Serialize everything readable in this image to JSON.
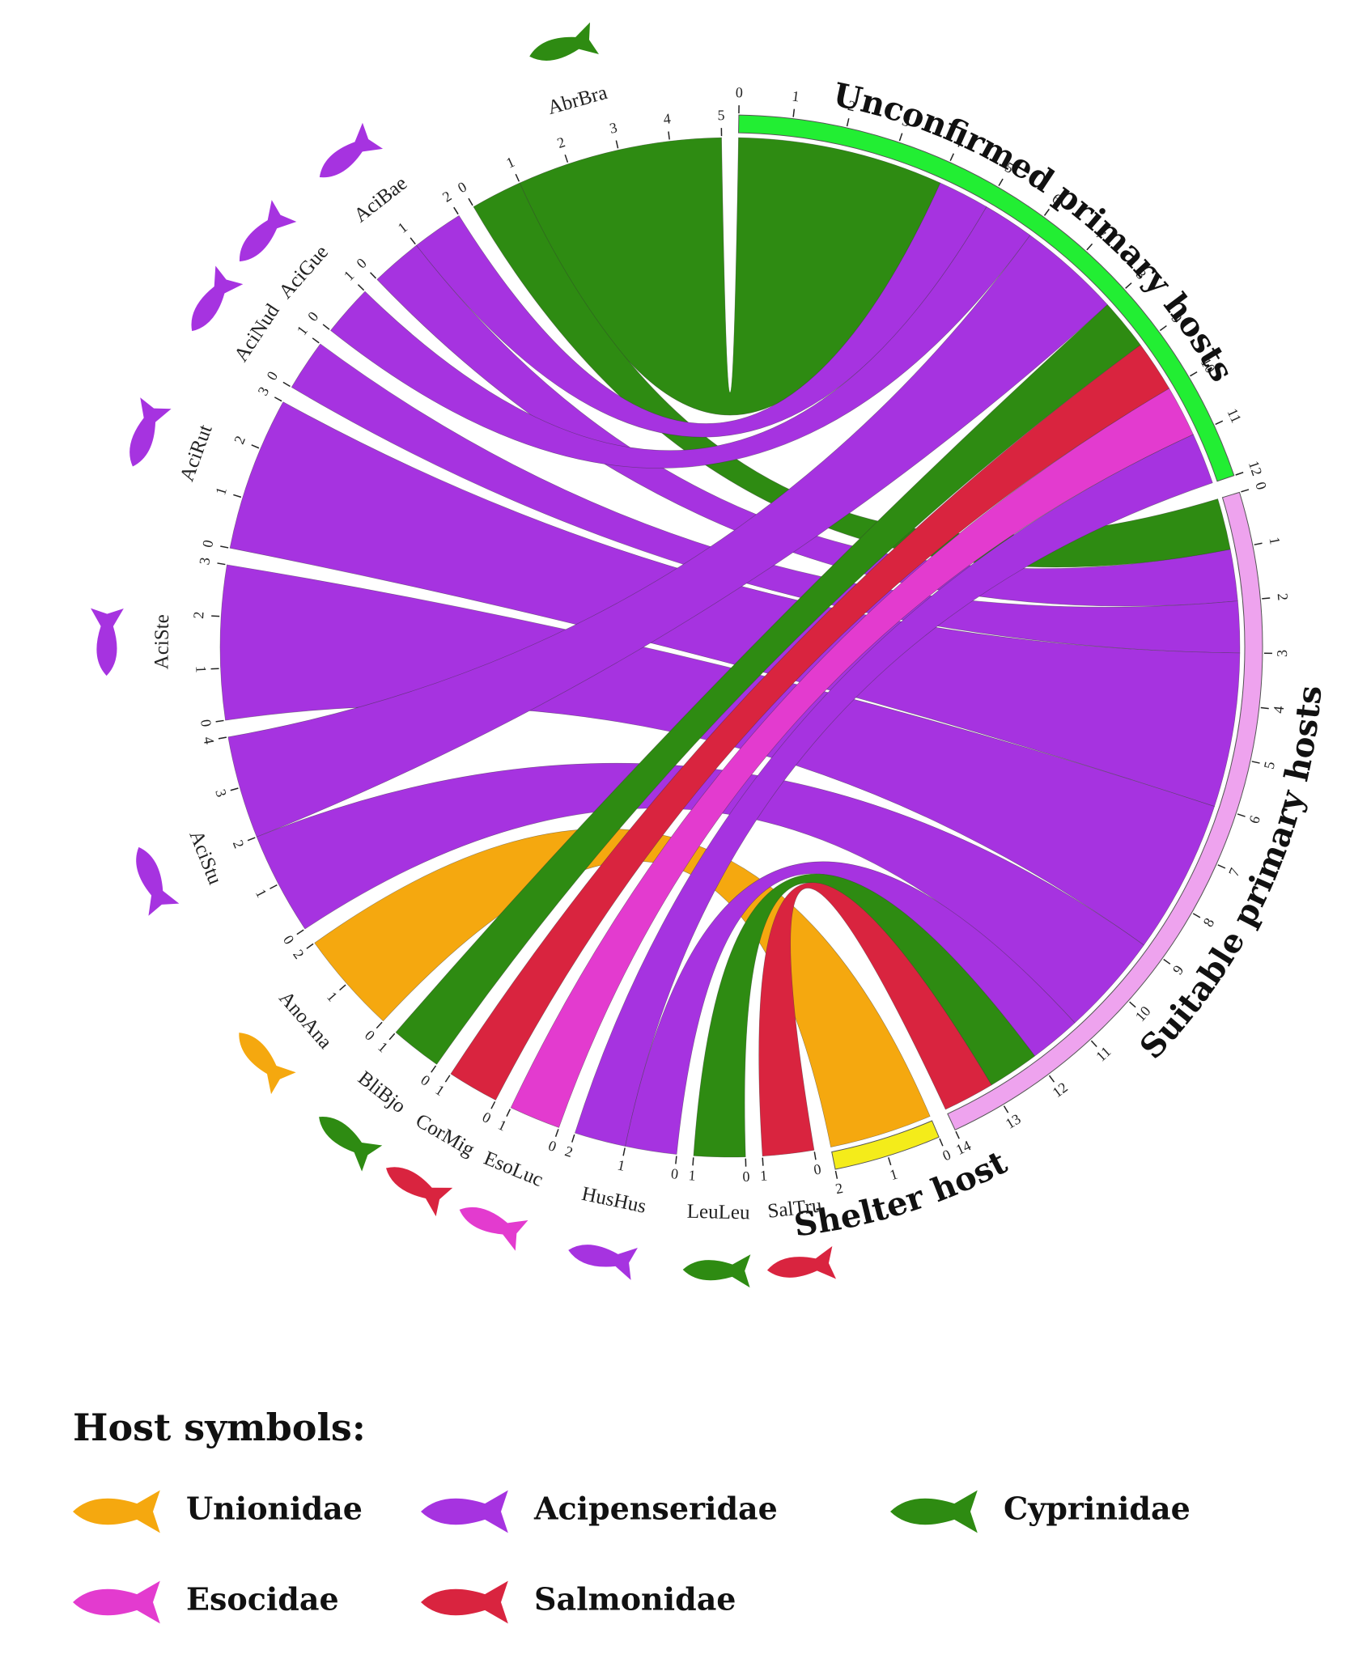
{
  "chart_data": {
    "type": "chord",
    "sectors": [
      {
        "name": "Unconfirmed primary hosts",
        "color": "#22ee33",
        "ticks": [
          0,
          1,
          2,
          3,
          4,
          5,
          6,
          7,
          8,
          9,
          10,
          11,
          12
        ]
      },
      {
        "name": "Suitable primary hosts",
        "color": "#eea3ee",
        "ticks": [
          0,
          1,
          2,
          3,
          4,
          5,
          6,
          7,
          8,
          9,
          10,
          11,
          12,
          13,
          14
        ]
      },
      {
        "name": "Shelter host",
        "color": "#f4ec1a",
        "ticks": [
          0,
          1,
          2
        ]
      },
      {
        "name": "SalTru",
        "color": "#d9243f",
        "ticks": [
          0,
          1
        ]
      },
      {
        "name": "LeuLeu",
        "color": "#2e8b12",
        "ticks": [
          0,
          1
        ]
      },
      {
        "name": "HusHus",
        "color": "#a633e0",
        "ticks": [
          0,
          1,
          2
        ]
      },
      {
        "name": "EsoLuc",
        "color": "#e33bcf",
        "ticks": [
          0,
          1
        ]
      },
      {
        "name": "CorMig",
        "color": "#d9243f",
        "ticks": [
          0,
          1
        ]
      },
      {
        "name": "BliBjo",
        "color": "#2e8b12",
        "ticks": [
          0,
          1
        ]
      },
      {
        "name": "AnoAna",
        "color": "#f5a80f",
        "ticks": [
          0,
          1,
          2
        ]
      },
      {
        "name": "AciStu",
        "color": "#a633e0",
        "ticks": [
          0,
          1,
          2,
          3,
          4
        ]
      },
      {
        "name": "AciSte",
        "color": "#a633e0",
        "ticks": [
          0,
          1,
          2,
          3
        ]
      },
      {
        "name": "AciRut",
        "color": "#a633e0",
        "ticks": [
          0,
          1,
          2,
          3
        ]
      },
      {
        "name": "AciNud",
        "color": "#a633e0",
        "ticks": [
          0,
          1
        ]
      },
      {
        "name": "AciGue",
        "color": "#a633e0",
        "ticks": [
          0,
          1
        ]
      },
      {
        "name": "AciBae",
        "color": "#a633e0",
        "ticks": [
          0,
          1,
          2
        ]
      },
      {
        "name": "AbrBra",
        "color": "#2e8b12",
        "ticks": [
          0,
          1,
          2,
          3,
          4,
          5
        ]
      }
    ],
    "links": [
      {
        "source": "AbrBra",
        "target": "Unconfirmed primary hosts",
        "value": 4
      },
      {
        "source": "AbrBra",
        "target": "Suitable primary hosts",
        "value": 1
      },
      {
        "source": "AciBae",
        "target": "Unconfirmed primary hosts",
        "value": 1
      },
      {
        "source": "AciBae",
        "target": "Suitable primary hosts",
        "value": 1
      },
      {
        "source": "AciGue",
        "target": "Unconfirmed primary hosts",
        "value": 1
      },
      {
        "source": "AciNud",
        "target": "Suitable primary hosts",
        "value": 1
      },
      {
        "source": "AciRut",
        "target": "Suitable primary hosts",
        "value": 3
      },
      {
        "source": "AciSte",
        "target": "Suitable primary hosts",
        "value": 3
      },
      {
        "source": "AciStu",
        "target": "Unconfirmed primary hosts",
        "value": 2
      },
      {
        "source": "AciStu",
        "target": "Suitable primary hosts",
        "value": 2
      },
      {
        "source": "AnoAna",
        "target": "Shelter host",
        "value": 2
      },
      {
        "source": "BliBjo",
        "target": "Unconfirmed primary hosts",
        "value": 1
      },
      {
        "source": "CorMig",
        "target": "Unconfirmed primary hosts",
        "value": 1
      },
      {
        "source": "EsoLuc",
        "target": "Unconfirmed primary hosts",
        "value": 1
      },
      {
        "source": "HusHus",
        "target": "Unconfirmed primary hosts",
        "value": 1
      },
      {
        "source": "HusHus",
        "target": "Suitable primary hosts",
        "value": 1
      },
      {
        "source": "LeuLeu",
        "target": "Suitable primary hosts",
        "value": 1
      },
      {
        "source": "SalTru",
        "target": "Suitable primary hosts",
        "value": 1
      }
    ]
  },
  "legend": {
    "title": "Host symbols:",
    "items": [
      {
        "label": "Unionidae",
        "color": "#f5a80f"
      },
      {
        "label": "Acipenseridae",
        "color": "#a633e0"
      },
      {
        "label": "Cyprinidae",
        "color": "#2e8b12"
      },
      {
        "label": "Esocidae",
        "color": "#e33bcf"
      },
      {
        "label": "Salmonidae",
        "color": "#d9243f"
      }
    ]
  }
}
